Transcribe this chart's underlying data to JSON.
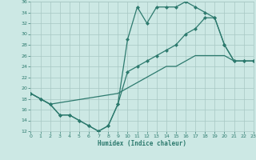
{
  "xlabel": "Humidex (Indice chaleur)",
  "xlim": [
    0,
    23
  ],
  "ylim": [
    12,
    36
  ],
  "xticks": [
    0,
    1,
    2,
    3,
    4,
    5,
    6,
    7,
    8,
    9,
    10,
    11,
    12,
    13,
    14,
    15,
    16,
    17,
    18,
    19,
    20,
    21,
    22,
    23
  ],
  "yticks": [
    12,
    14,
    16,
    18,
    20,
    22,
    24,
    26,
    28,
    30,
    32,
    34,
    36
  ],
  "bg_color": "#cce8e4",
  "line_color": "#2d7a6e",
  "grid_color": "#a8c8c4",
  "line1_x": [
    0,
    1,
    2,
    3,
    4,
    5,
    6,
    7,
    8,
    9,
    10,
    11,
    12,
    13,
    14,
    15,
    16,
    17,
    18,
    19,
    20,
    21,
    22,
    23
  ],
  "line1_y": [
    19,
    18,
    17,
    15,
    15,
    14,
    13,
    12,
    13,
    17,
    29,
    35,
    32,
    35,
    35,
    35,
    36,
    35,
    34,
    33,
    28,
    25,
    25,
    25
  ],
  "line2_x": [
    0,
    1,
    2,
    3,
    4,
    5,
    6,
    7,
    8,
    9,
    10,
    11,
    12,
    13,
    14,
    15,
    16,
    17,
    18,
    19,
    20,
    21,
    22,
    23
  ],
  "line2_y": [
    19,
    18,
    17,
    15,
    15,
    14,
    13,
    12,
    13,
    17,
    23,
    24,
    25,
    26,
    27,
    28,
    30,
    31,
    33,
    33,
    28,
    25,
    25,
    25
  ],
  "line3_x": [
    0,
    2,
    9,
    10,
    11,
    12,
    13,
    14,
    15,
    16,
    17,
    18,
    19,
    20,
    21,
    22,
    23
  ],
  "line3_y": [
    19,
    17,
    19,
    20,
    21,
    22,
    23,
    24,
    24,
    25,
    26,
    26,
    26,
    26,
    25,
    25,
    25
  ]
}
